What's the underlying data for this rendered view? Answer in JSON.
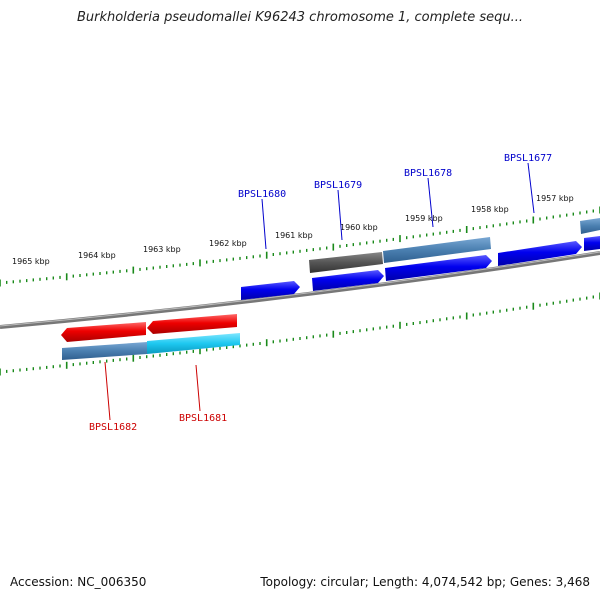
{
  "title": "Burkholderia pseudomallei K96243 chromosome 1, complete sequ...",
  "footer": {
    "accession": "Accession: NC_006350",
    "summary": "Topology: circular; Length: 4,074,542 bp; Genes: 3,468"
  },
  "kbp_labels": [
    "1965 kbp",
    "1964 kbp",
    "1963 kbp",
    "1962 kbp",
    "1961 kbp",
    "1960 kbp",
    "1959 kbp",
    "1958 kbp",
    "1957 kbp"
  ],
  "gene_labels_forward": [
    "BPSL1680",
    "BPSL1679",
    "BPSL1678",
    "BPSL1677"
  ],
  "gene_labels_reverse": [
    "BPSL1682",
    "BPSL1681"
  ],
  "colors": {
    "forward_label": "#0000cc",
    "reverse_label": "#cc0000",
    "cds_blue": "#0000ee",
    "cds_red": "#ee0000",
    "gene_steel": "#4a7fb0",
    "gene_cyan": "#1ec8f0",
    "gene_gray": "#555555",
    "backbone": "#888888",
    "tick": "#1a8a1a"
  },
  "icons": []
}
